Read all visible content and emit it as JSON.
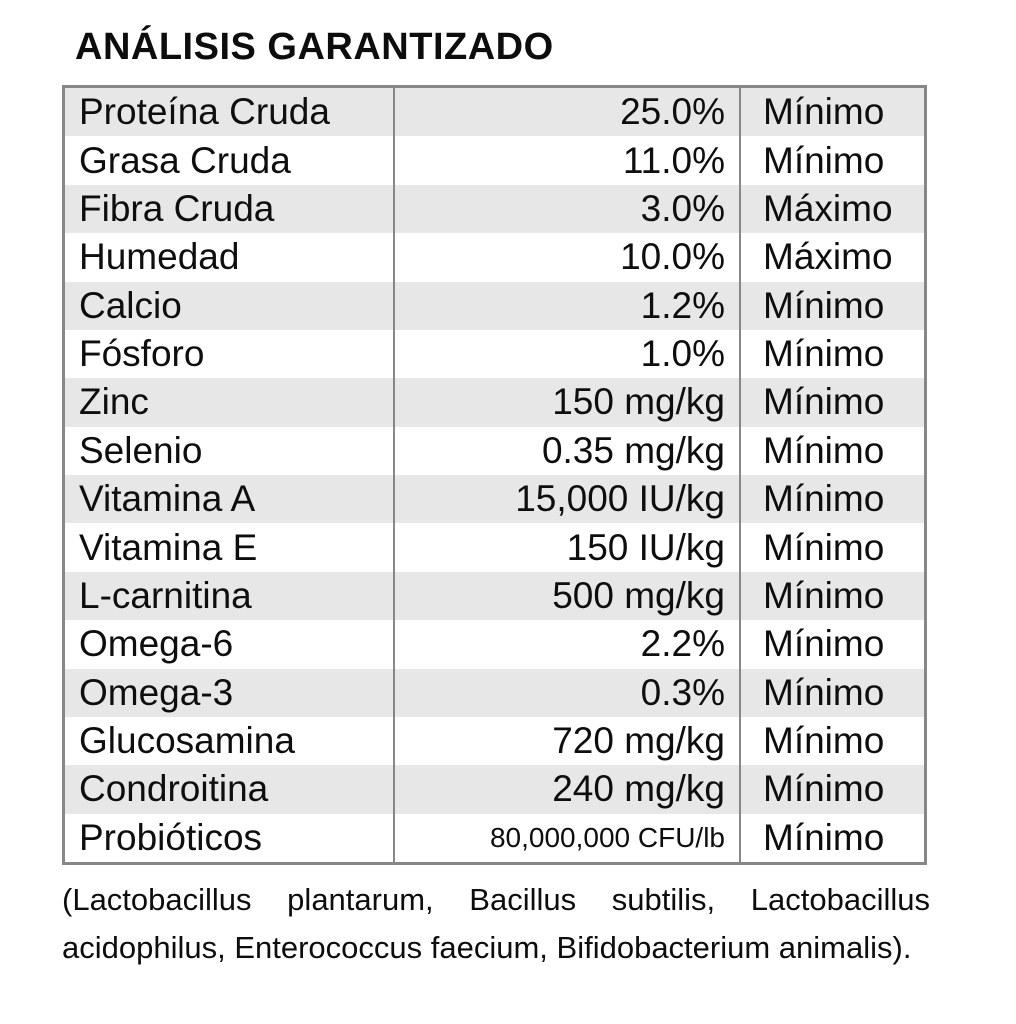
{
  "title": "ANÁLISIS GARANTIZADO",
  "colors": {
    "row_stripe": "#e7e7e7",
    "table_border": "#878787",
    "text": "#0e0e0e",
    "background": "#ffffff"
  },
  "table": {
    "rows": [
      {
        "name": "Proteína Cruda",
        "value": "25.0%",
        "bound": "Mínimo"
      },
      {
        "name": "Grasa Cruda",
        "value": "11.0%",
        "bound": "Mínimo"
      },
      {
        "name": "Fibra Cruda",
        "value": "3.0%",
        "bound": "Máximo"
      },
      {
        "name": "Humedad",
        "value": "10.0%",
        "bound": "Máximo"
      },
      {
        "name": "Calcio",
        "value": "1.2%",
        "bound": "Mínimo"
      },
      {
        "name": "Fósforo",
        "value": "1.0%",
        "bound": "Mínimo"
      },
      {
        "name": "Zinc",
        "value": "150 mg/kg",
        "bound": "Mínimo"
      },
      {
        "name": "Selenio",
        "value": "0.35 mg/kg",
        "bound": "Mínimo"
      },
      {
        "name": "Vitamina A",
        "value": "15,000 IU/kg",
        "bound": "Mínimo"
      },
      {
        "name": "Vitamina E",
        "value": "150 IU/kg",
        "bound": "Mínimo"
      },
      {
        "name": "L-carnitina",
        "value": "500 mg/kg",
        "bound": "Mínimo"
      },
      {
        "name": "Omega-6",
        "value": "2.2%",
        "bound": "Mínimo"
      },
      {
        "name": "Omega-3",
        "value": "0.3%",
        "bound": "Mínimo"
      },
      {
        "name": "Glucosamina",
        "value": "720 mg/kg",
        "bound": "Mínimo"
      },
      {
        "name": "Condroitina",
        "value": "240 mg/kg",
        "bound": "Mínimo"
      },
      {
        "name": "Probióticos",
        "value": "80,000,000 CFU/lb",
        "bound": "Mínimo"
      }
    ]
  },
  "footnote": "(Lactobacillus plantarum, Bacillus subtilis, Lactobacillus acidophilus, Enterococcus faecium, Bifidobacterium animalis)."
}
